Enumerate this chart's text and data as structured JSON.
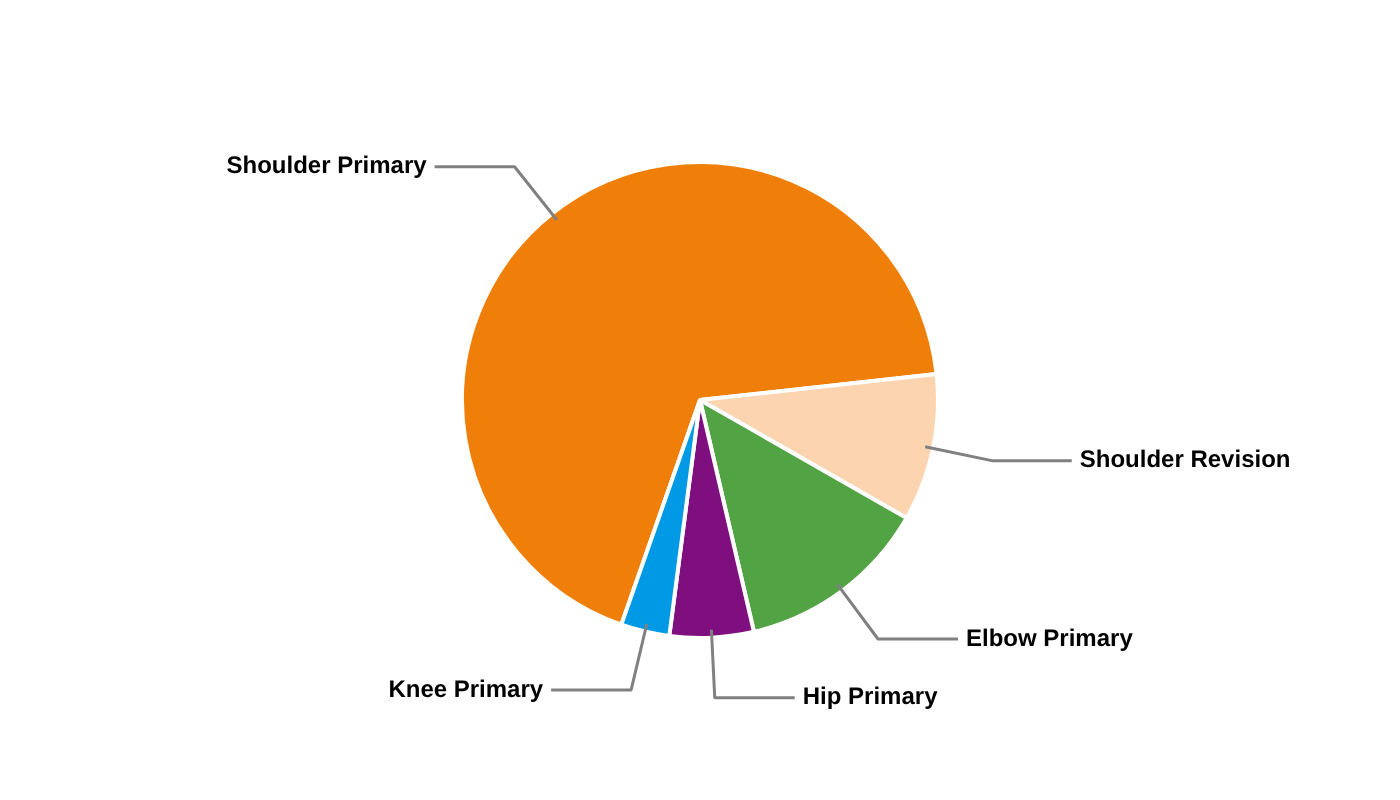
{
  "chart_data": {
    "type": "pie",
    "categories": [
      "Shoulder Primary",
      "Shoulder Revision",
      "Elbow Primary",
      "Hip Primary",
      "Knee Primary"
    ],
    "values": [
      67.9,
      10,
      13.1,
      5.7,
      3.3
    ],
    "colors": [
      "#f07f09",
      "#fcd5b0",
      "#52a344",
      "#7f0f7e",
      "#0099e6"
    ],
    "legend": false
  }
}
